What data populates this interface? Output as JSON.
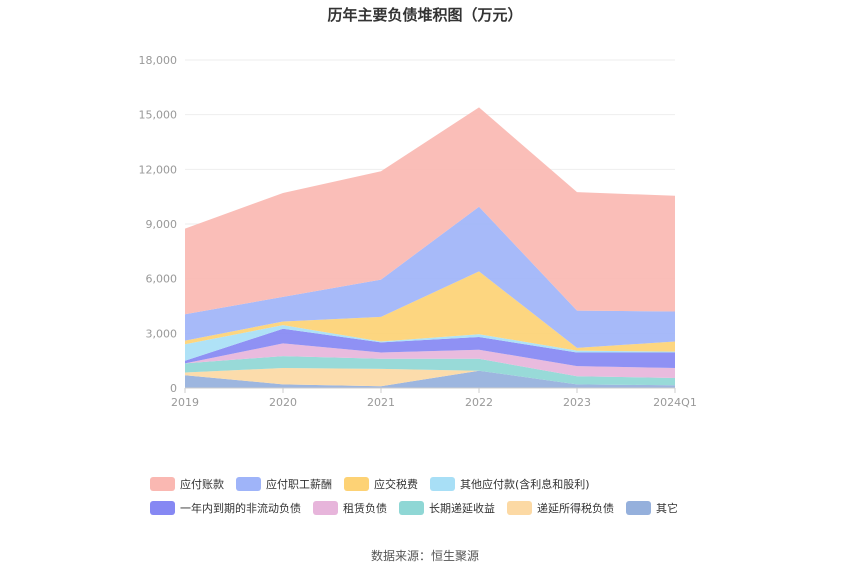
{
  "chart_data": {
    "type": "area",
    "stacked": true,
    "title": "历年主要负债堆积图（万元）",
    "categories": [
      "2019",
      "2020",
      "2021",
      "2022",
      "2023",
      "2024Q1"
    ],
    "ylim": [
      0,
      18000
    ],
    "yticks": [
      "0",
      "3,000",
      "6,000",
      "9,000",
      "12,000",
      "15,000",
      "18,000"
    ],
    "ytick_values": [
      0,
      3000,
      6000,
      9000,
      12000,
      15000,
      18000
    ],
    "grid": true,
    "legend_position": "bottom",
    "series": [
      {
        "name": "其它",
        "color": "#95b0dc",
        "values": [
          700,
          200,
          100,
          950,
          200,
          150
        ]
      },
      {
        "name": "递延所得税负债",
        "color": "#fcd9a4",
        "values": [
          150,
          900,
          950,
          0,
          0,
          0
        ]
      },
      {
        "name": "长期递延收益",
        "color": "#8fd7d5",
        "values": [
          500,
          650,
          550,
          650,
          450,
          400
        ]
      },
      {
        "name": "租赁负债",
        "color": "#e7b5db",
        "values": [
          0,
          700,
          350,
          500,
          550,
          550
        ]
      },
      {
        "name": "一年内到期的非流动负债",
        "color": "#8688f3",
        "values": [
          150,
          800,
          550,
          700,
          750,
          850
        ]
      },
      {
        "name": "其他应付款(含利息和股利)",
        "color": "#a8dff6",
        "values": [
          900,
          200,
          50,
          150,
          100,
          50
        ]
      },
      {
        "name": "应交税费",
        "color": "#fdd275",
        "values": [
          200,
          200,
          1350,
          3450,
          150,
          550
        ]
      },
      {
        "name": "应付职工薪酬",
        "color": "#9fb4f9",
        "values": [
          1450,
          1350,
          2050,
          3550,
          2050,
          1650
        ]
      },
      {
        "name": "应付账款",
        "color": "#fab8b2",
        "values": [
          4700,
          5700,
          5950,
          5450,
          6500,
          6350
        ]
      }
    ]
  },
  "legend_rows": [
    [
      "应付账款",
      "应付职工薪酬",
      "应交税费",
      "其他应付款(含利息和股利)"
    ],
    [
      "一年内到期的非流动负债",
      "租赁负债",
      "长期递延收益",
      "递延所得税负债",
      "其它"
    ]
  ],
  "colors": {
    "axis": "#cccccc",
    "grid": "#eeeeee",
    "tick_text": "#999999"
  },
  "source_note": "数据来源：恒生聚源"
}
